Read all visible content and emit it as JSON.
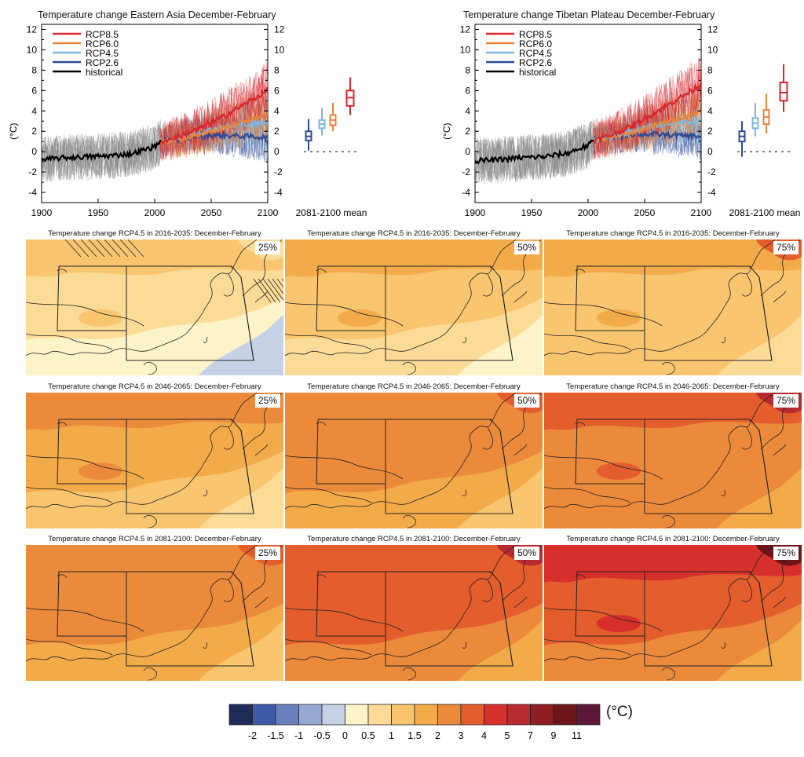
{
  "colors": {
    "rcp85": "#d7262d",
    "rcp60": "#e9833a",
    "rcp45": "#7db7dd",
    "rcp26": "#2e4a94",
    "historical": "#000000",
    "historical_spread": "#888888",
    "colorbar": [
      "#202b5a",
      "#3e5aa6",
      "#6a80bd",
      "#97a9d3",
      "#c6d1e6",
      "#fdf3c8",
      "#fcdb96",
      "#f9c56e",
      "#f3ab49",
      "#ec8a3c",
      "#e35d2d",
      "#d7302c",
      "#b72a2f",
      "#8e1e23",
      "#6e1519",
      "#5d1837"
    ]
  },
  "top_charts": [
    {
      "title": "Temperature change Eastern Asia December-February",
      "legend": [
        "RCP8.5",
        "RCP6.0",
        "RCP4.5",
        "RCP2.6",
        "historical"
      ],
      "ylabel": "(°C)",
      "yticks": [
        "-4",
        "-2",
        "0",
        "2",
        "4",
        "6",
        "8",
        "10",
        "12"
      ],
      "xticks": [
        "1900",
        "1950",
        "2000",
        "2050",
        "2100"
      ],
      "box_label": "2081-2100 mean"
    },
    {
      "title": "Temperature change Tibetan Plateau December-February",
      "legend": [
        "RCP8.5",
        "RCP6.0",
        "RCP4.5",
        "RCP2.6",
        "historical"
      ],
      "ylabel": "(°C)",
      "yticks": [
        "-4",
        "-2",
        "0",
        "2",
        "4",
        "6",
        "8",
        "10",
        "12"
      ],
      "xticks": [
        "1900",
        "1950",
        "2000",
        "2050",
        "2100"
      ],
      "box_label": "2081-2100 mean"
    }
  ],
  "chart_data": [
    {
      "type": "line",
      "title": "Temperature change Eastern Asia December-February",
      "ylabel": "(°C)",
      "xlim": [
        1900,
        2100
      ],
      "ylim": [
        -5,
        12.5
      ],
      "grid": false,
      "legend_position": "top-left",
      "x": [
        1900,
        1920,
        1940,
        1960,
        1980,
        2000,
        2005,
        2020,
        2040,
        2060,
        2080,
        2100
      ],
      "series": [
        {
          "name": "historical",
          "x": [
            1900,
            1920,
            1940,
            1960,
            1980,
            2000,
            2005
          ],
          "values": [
            -0.8,
            -0.6,
            -0.5,
            -0.4,
            -0.2,
            0.5,
            1.0
          ]
        },
        {
          "name": "RCP8.5",
          "x": [
            2005,
            2020,
            2040,
            2060,
            2080,
            2100
          ],
          "values": [
            1.0,
            1.4,
            2.3,
            3.4,
            4.7,
            6.0
          ]
        },
        {
          "name": "RCP6.0",
          "x": [
            2005,
            2020,
            2040,
            2060,
            2080,
            2100
          ],
          "values": [
            1.0,
            1.2,
            1.7,
            2.3,
            3.0,
            3.7
          ]
        },
        {
          "name": "RCP4.5",
          "x": [
            2005,
            2020,
            2040,
            2060,
            2080,
            2100
          ],
          "values": [
            1.0,
            1.3,
            1.9,
            2.4,
            2.7,
            2.8
          ]
        },
        {
          "name": "RCP2.6",
          "x": [
            2005,
            2020,
            2040,
            2060,
            2080,
            2100
          ],
          "values": [
            1.0,
            1.3,
            1.6,
            1.6,
            1.5,
            1.4
          ]
        }
      ],
      "boxplots_2081_2100_mean": [
        {
          "name": "RCP2.6",
          "min": 0.1,
          "q1": 1.1,
          "median": 1.5,
          "q3": 2.0,
          "max": 3.2
        },
        {
          "name": "RCP4.5",
          "min": 1.6,
          "q1": 2.3,
          "median": 2.7,
          "q3": 3.1,
          "max": 4.3
        },
        {
          "name": "RCP6.0",
          "min": 2.0,
          "q1": 2.6,
          "median": 3.1,
          "q3": 3.6,
          "max": 4.8
        },
        {
          "name": "RCP8.5",
          "min": 3.6,
          "q1": 4.5,
          "median": 5.3,
          "q3": 6.0,
          "max": 7.3
        }
      ]
    },
    {
      "type": "line",
      "title": "Temperature change Tibetan Plateau December-February",
      "ylabel": "(°C)",
      "xlim": [
        1900,
        2100
      ],
      "ylim": [
        -5,
        12.5
      ],
      "grid": false,
      "legend_position": "top-left",
      "x": [
        1900,
        1920,
        1940,
        1960,
        1980,
        2000,
        2005,
        2020,
        2040,
        2060,
        2080,
        2100
      ],
      "series": [
        {
          "name": "historical",
          "x": [
            1900,
            1920,
            1940,
            1960,
            1980,
            2000,
            2005
          ],
          "values": [
            -0.9,
            -0.8,
            -0.6,
            -0.5,
            -0.2,
            0.6,
            1.1
          ]
        },
        {
          "name": "RCP8.5",
          "x": [
            2005,
            2020,
            2040,
            2060,
            2080,
            2100
          ],
          "values": [
            1.1,
            1.6,
            2.6,
            3.9,
            5.2,
            6.6
          ]
        },
        {
          "name": "RCP6.0",
          "x": [
            2005,
            2020,
            2040,
            2060,
            2080,
            2100
          ],
          "values": [
            1.1,
            1.3,
            1.9,
            2.6,
            3.3,
            4.0
          ]
        },
        {
          "name": "RCP4.5",
          "x": [
            2005,
            2020,
            2040,
            2060,
            2080,
            2100
          ],
          "values": [
            1.1,
            1.4,
            2.1,
            2.6,
            2.9,
            3.0
          ]
        },
        {
          "name": "RCP2.6",
          "x": [
            2005,
            2020,
            2040,
            2060,
            2080,
            2100
          ],
          "values": [
            1.1,
            1.4,
            1.7,
            1.7,
            1.6,
            1.5
          ]
        }
      ],
      "boxplots_2081_2100_mean": [
        {
          "name": "RCP2.6",
          "min": -0.5,
          "q1": 1.0,
          "median": 1.5,
          "q3": 2.0,
          "max": 3.0
        },
        {
          "name": "RCP4.5",
          "min": 1.5,
          "q1": 2.3,
          "median": 2.8,
          "q3": 3.3,
          "max": 4.8
        },
        {
          "name": "RCP6.0",
          "min": 1.8,
          "q1": 2.7,
          "median": 3.4,
          "q3": 4.1,
          "max": 5.7
        },
        {
          "name": "RCP8.5",
          "min": 3.9,
          "q1": 5.0,
          "median": 5.8,
          "q3": 6.8,
          "max": 8.6
        }
      ]
    },
    {
      "type": "heatmap",
      "description_of_panels": "3x3 grid of maps",
      "panels": [
        {
          "title": "Temperature change RCP4.5 in 2016-2035: December-February",
          "percentile": "25%",
          "dominant_bin": "0.5-1"
        },
        {
          "title": "Temperature change RCP4.5 in 2016-2035: December-February",
          "percentile": "50%",
          "dominant_bin": "1-1.5"
        },
        {
          "title": "Temperature change RCP4.5 in 2016-2035: December-February",
          "percentile": "75%",
          "dominant_bin": "1.5-2"
        },
        {
          "title": "Temperature change RCP4.5 in 2046-2065: December-February",
          "percentile": "25%",
          "dominant_bin": "1.5-2"
        },
        {
          "title": "Temperature change RCP4.5 in 2046-2065: December-February",
          "percentile": "50%",
          "dominant_bin": "2-3"
        },
        {
          "title": "Temperature change RCP4.5 in 2046-2065: December-February",
          "percentile": "75%",
          "dominant_bin": "3-4"
        },
        {
          "title": "Temperature change RCP4.5 in 2081-2100: December-February",
          "percentile": "25%",
          "dominant_bin": "2-3"
        },
        {
          "title": "Temperature change RCP4.5 in 2081-2100: December-February",
          "percentile": "50%",
          "dominant_bin": "3-4"
        },
        {
          "title": "Temperature change RCP4.5 in 2081-2100: December-February",
          "percentile": "75%",
          "dominant_bin": "4-5"
        }
      ],
      "colorbar_ticks": [
        "-2",
        "-1.5",
        "-1",
        "-0.5",
        "0",
        "0.5",
        "1",
        "1.5",
        "2",
        "3",
        "4",
        "5",
        "7",
        "9",
        "11"
      ],
      "colorbar_unit": "(°C)"
    }
  ],
  "maps": [
    {
      "title": "Temperature change RCP4.5 in 2016-2035: December-February",
      "percentile": "25%",
      "base": 6,
      "north": 7,
      "south": 5,
      "hot": 6,
      "hatch": true
    },
    {
      "title": "Temperature change RCP4.5 in 2016-2035: December-February",
      "percentile": "50%",
      "base": 7,
      "north": 8,
      "south": 6,
      "hot": 8,
      "hatch": false
    },
    {
      "title": "Temperature change RCP4.5 in 2016-2035: December-February",
      "percentile": "75%",
      "base": 7,
      "north": 8,
      "south": 7,
      "hot": 10,
      "hatch": false
    },
    {
      "title": "Temperature change RCP4.5 in 2046-2065: December-February",
      "percentile": "25%",
      "base": 8,
      "north": 9,
      "south": 7,
      "hot": 9,
      "hatch": false
    },
    {
      "title": "Temperature change RCP4.5 in 2046-2065: December-February",
      "percentile": "50%",
      "base": 9,
      "north": 9,
      "south": 8,
      "hot": 10,
      "hatch": false
    },
    {
      "title": "Temperature change RCP4.5 in 2046-2065: December-February",
      "percentile": "75%",
      "base": 9,
      "north": 10,
      "south": 9,
      "hot": 12,
      "hatch": false
    },
    {
      "title": "Temperature change RCP4.5 in 2081-2100: December-February",
      "percentile": "25%",
      "base": 9,
      "north": 9,
      "south": 8,
      "hot": 10,
      "hatch": false
    },
    {
      "title": "Temperature change RCP4.5 in 2081-2100: December-February",
      "percentile": "50%",
      "base": 10,
      "north": 10,
      "south": 9,
      "hot": 12,
      "hatch": false
    },
    {
      "title": "Temperature change RCP4.5 in 2081-2100: December-February",
      "percentile": "75%",
      "base": 10,
      "north": 11,
      "south": 9,
      "hot": 14,
      "hatch": false
    }
  ],
  "colorbar": {
    "ticks": [
      "-2",
      "-1.5",
      "-1",
      "-0.5",
      "0",
      "0.5",
      "1",
      "1.5",
      "2",
      "3",
      "4",
      "5",
      "7",
      "9",
      "11"
    ],
    "unit": "(°C)"
  }
}
